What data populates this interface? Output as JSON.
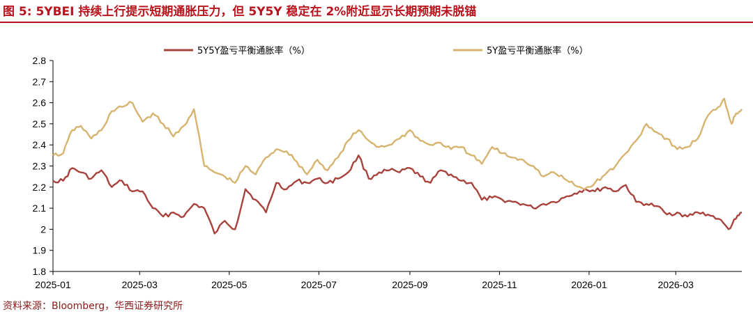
{
  "header": {
    "title": "图 5:  5YBEI 持续上行提示短期通胀压力，但 5Y5Y 稳定在 2%附近显示长期预期未脱锚"
  },
  "footer": {
    "source": "资料来源：Bloomberg，华西证券研究所"
  },
  "chart_data": {
    "type": "line",
    "title": "",
    "xlabel": "",
    "ylabel": "",
    "ylim": [
      1.8,
      2.8
    ],
    "yticks": [
      "1.8",
      "1.9",
      "2",
      "2.1",
      "2.2",
      "2.3",
      "2.4",
      "2.5",
      "2.6",
      "2.7",
      "2.8"
    ],
    "xlim": [
      "2025-01",
      "2026-04-15"
    ],
    "xticks": [
      "2025-01",
      "2025-03",
      "2025-05",
      "2025-07",
      "2025-09",
      "2025-11",
      "2026-01",
      "2026-03"
    ],
    "grid": false,
    "legend": "top",
    "series": [
      {
        "name": "5Y5Y盈亏平衡通胀率（%）",
        "color": "#a8423c",
        "points": [
          [
            "2025-01-01",
            2.23
          ],
          [
            "2025-01-08",
            2.23
          ],
          [
            "2025-01-14",
            2.29
          ],
          [
            "2025-01-20",
            2.27
          ],
          [
            "2025-01-27",
            2.24
          ],
          [
            "2025-02-03",
            2.28
          ],
          [
            "2025-02-10",
            2.2
          ],
          [
            "2025-02-17",
            2.23
          ],
          [
            "2025-02-24",
            2.18
          ],
          [
            "2025-03-03",
            2.18
          ],
          [
            "2025-03-10",
            2.1
          ],
          [
            "2025-03-17",
            2.06
          ],
          [
            "2025-03-24",
            2.08
          ],
          [
            "2025-03-31",
            2.06
          ],
          [
            "2025-04-07",
            2.12
          ],
          [
            "2025-04-14",
            2.1
          ],
          [
            "2025-04-21",
            1.98
          ],
          [
            "2025-04-28",
            2.04
          ],
          [
            "2025-05-05",
            2.0
          ],
          [
            "2025-05-12",
            2.19
          ],
          [
            "2025-05-19",
            2.14
          ],
          [
            "2025-05-26",
            2.08
          ],
          [
            "2025-06-02",
            2.22
          ],
          [
            "2025-06-09",
            2.19
          ],
          [
            "2025-06-16",
            2.23
          ],
          [
            "2025-06-23",
            2.22
          ],
          [
            "2025-06-30",
            2.24
          ],
          [
            "2025-07-07",
            2.22
          ],
          [
            "2025-07-14",
            2.24
          ],
          [
            "2025-07-21",
            2.27
          ],
          [
            "2025-07-28",
            2.35
          ],
          [
            "2025-08-04",
            2.24
          ],
          [
            "2025-08-11",
            2.27
          ],
          [
            "2025-08-18",
            2.28
          ],
          [
            "2025-08-25",
            2.27
          ],
          [
            "2025-09-01",
            2.29
          ],
          [
            "2025-09-08",
            2.25
          ],
          [
            "2025-09-15",
            2.22
          ],
          [
            "2025-09-22",
            2.28
          ],
          [
            "2025-09-29",
            2.26
          ],
          [
            "2025-10-06",
            2.23
          ],
          [
            "2025-10-13",
            2.22
          ],
          [
            "2025-10-20",
            2.14
          ],
          [
            "2025-10-27",
            2.15
          ],
          [
            "2025-11-03",
            2.14
          ],
          [
            "2025-11-10",
            2.13
          ],
          [
            "2025-11-17",
            2.12
          ],
          [
            "2025-11-24",
            2.1
          ],
          [
            "2025-12-01",
            2.12
          ],
          [
            "2025-12-08",
            2.13
          ],
          [
            "2025-12-15",
            2.15
          ],
          [
            "2025-12-22",
            2.17
          ],
          [
            "2025-12-29",
            2.19
          ],
          [
            "2026-01-05",
            2.18
          ],
          [
            "2026-01-12",
            2.2
          ],
          [
            "2026-01-19",
            2.18
          ],
          [
            "2026-01-26",
            2.21
          ],
          [
            "2026-02-02",
            2.13
          ],
          [
            "2026-02-09",
            2.12
          ],
          [
            "2026-02-16",
            2.11
          ],
          [
            "2026-02-23",
            2.07
          ],
          [
            "2026-03-02",
            2.08
          ],
          [
            "2026-03-09",
            2.06
          ],
          [
            "2026-03-16",
            2.08
          ],
          [
            "2026-03-23",
            2.07
          ],
          [
            "2026-03-30",
            2.05
          ],
          [
            "2026-04-06",
            2.0
          ],
          [
            "2026-04-11",
            2.05
          ],
          [
            "2026-04-15",
            2.08
          ]
        ]
      },
      {
        "name": "5Y盈亏平衡通胀率（%）",
        "color": "#d6b36f",
        "points": [
          [
            "2025-01-01",
            2.35
          ],
          [
            "2025-01-08",
            2.36
          ],
          [
            "2025-01-14",
            2.47
          ],
          [
            "2025-01-20",
            2.49
          ],
          [
            "2025-01-27",
            2.43
          ],
          [
            "2025-02-03",
            2.47
          ],
          [
            "2025-02-10",
            2.56
          ],
          [
            "2025-02-17",
            2.58
          ],
          [
            "2025-02-24",
            2.6
          ],
          [
            "2025-03-03",
            2.51
          ],
          [
            "2025-03-10",
            2.55
          ],
          [
            "2025-03-17",
            2.5
          ],
          [
            "2025-03-24",
            2.44
          ],
          [
            "2025-03-31",
            2.49
          ],
          [
            "2025-04-07",
            2.57
          ],
          [
            "2025-04-14",
            2.3
          ],
          [
            "2025-04-21",
            2.27
          ],
          [
            "2025-04-28",
            2.25
          ],
          [
            "2025-05-05",
            2.22
          ],
          [
            "2025-05-12",
            2.3
          ],
          [
            "2025-05-19",
            2.26
          ],
          [
            "2025-05-26",
            2.34
          ],
          [
            "2025-06-02",
            2.38
          ],
          [
            "2025-06-09",
            2.37
          ],
          [
            "2025-06-16",
            2.32
          ],
          [
            "2025-06-23",
            2.26
          ],
          [
            "2025-06-30",
            2.33
          ],
          [
            "2025-07-07",
            2.28
          ],
          [
            "2025-07-14",
            2.34
          ],
          [
            "2025-07-21",
            2.42
          ],
          [
            "2025-07-28",
            2.47
          ],
          [
            "2025-08-04",
            2.42
          ],
          [
            "2025-08-11",
            2.39
          ],
          [
            "2025-08-18",
            2.4
          ],
          [
            "2025-08-25",
            2.43
          ],
          [
            "2025-09-01",
            2.47
          ],
          [
            "2025-09-08",
            2.42
          ],
          [
            "2025-09-15",
            2.4
          ],
          [
            "2025-09-22",
            2.41
          ],
          [
            "2025-09-29",
            2.38
          ],
          [
            "2025-10-06",
            2.39
          ],
          [
            "2025-10-13",
            2.35
          ],
          [
            "2025-10-20",
            2.31
          ],
          [
            "2025-10-27",
            2.39
          ],
          [
            "2025-11-03",
            2.36
          ],
          [
            "2025-11-10",
            2.34
          ],
          [
            "2025-11-17",
            2.33
          ],
          [
            "2025-11-24",
            2.3
          ],
          [
            "2025-12-01",
            2.25
          ],
          [
            "2025-12-08",
            2.27
          ],
          [
            "2025-12-15",
            2.24
          ],
          [
            "2025-12-22",
            2.21
          ],
          [
            "2025-12-29",
            2.19
          ],
          [
            "2026-01-05",
            2.22
          ],
          [
            "2026-01-12",
            2.26
          ],
          [
            "2026-01-19",
            2.3
          ],
          [
            "2026-01-26",
            2.36
          ],
          [
            "2026-02-02",
            2.42
          ],
          [
            "2026-02-09",
            2.5
          ],
          [
            "2026-02-16",
            2.46
          ],
          [
            "2026-02-23",
            2.43
          ],
          [
            "2026-03-02",
            2.38
          ],
          [
            "2026-03-09",
            2.39
          ],
          [
            "2026-03-16",
            2.43
          ],
          [
            "2026-03-23",
            2.54
          ],
          [
            "2026-03-30",
            2.58
          ],
          [
            "2026-04-03",
            2.62
          ],
          [
            "2026-04-08",
            2.5
          ],
          [
            "2026-04-11",
            2.55
          ],
          [
            "2026-04-15",
            2.57
          ]
        ]
      }
    ]
  }
}
